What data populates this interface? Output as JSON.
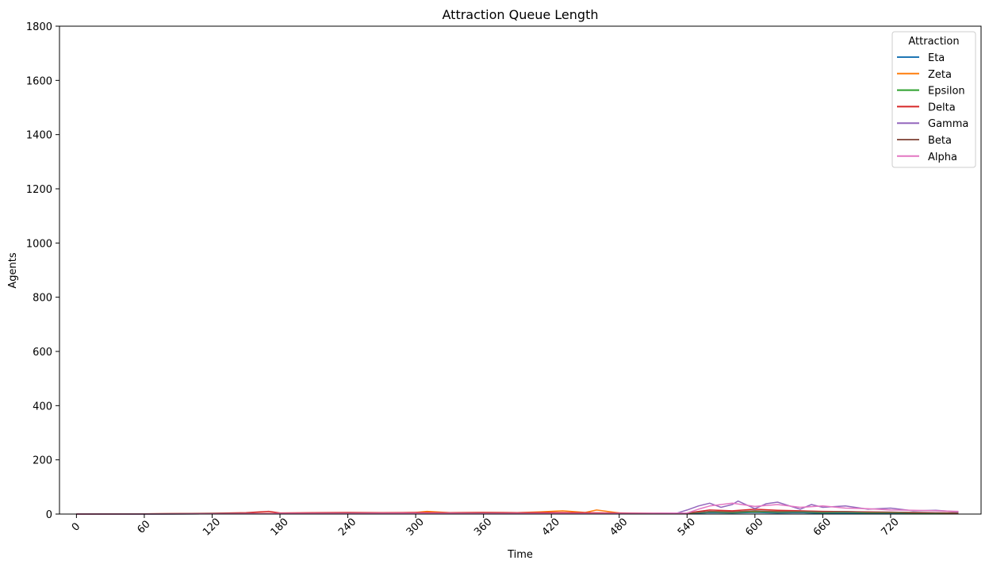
{
  "chart_data": {
    "type": "line",
    "title": "Attraction Queue Length",
    "xlabel": "Time",
    "ylabel": "Agents",
    "xlim": [
      -15,
      800
    ],
    "ylim": [
      0,
      1800
    ],
    "xticks": [
      0,
      60,
      120,
      180,
      240,
      300,
      360,
      420,
      480,
      540,
      600,
      660,
      720
    ],
    "yticks": [
      0,
      200,
      400,
      600,
      800,
      1000,
      1200,
      1400,
      1600,
      1800
    ],
    "x_tick_labels": [
      "0",
      "60",
      "120",
      "180",
      "240",
      "300",
      "360",
      "420",
      "480",
      "540",
      "600",
      "660",
      "720"
    ],
    "y_tick_labels": [
      "0",
      "200",
      "400",
      "600",
      "800",
      "1000",
      "1200",
      "1400",
      "1600",
      "1800"
    ],
    "grid": false,
    "legend": {
      "title": "Attraction",
      "placement": "top-right"
    },
    "series": [
      {
        "name": "Eta",
        "color": "#1f77b4",
        "x": [
          0,
          60,
          120,
          180,
          240,
          300,
          360,
          420,
          480,
          540,
          560,
          580,
          600,
          620,
          640,
          660,
          680,
          700,
          720,
          740,
          760,
          780
        ],
        "values": [
          0,
          0,
          1,
          1,
          1,
          1,
          1,
          1,
          1,
          2,
          5,
          4,
          6,
          4,
          5,
          3,
          4,
          3,
          3,
          2,
          2,
          2
        ]
      },
      {
        "name": "Zeta",
        "color": "#ff7f0e",
        "x": [
          0,
          60,
          120,
          150,
          180,
          210,
          240,
          270,
          300,
          310,
          330,
          360,
          390,
          410,
          430,
          450,
          460,
          480,
          510,
          540,
          570,
          600,
          630,
          660,
          690,
          720,
          750,
          780
        ],
        "values": [
          0,
          1,
          2,
          3,
          3,
          4,
          5,
          4,
          6,
          10,
          5,
          6,
          5,
          8,
          12,
          6,
          15,
          4,
          3,
          4,
          10,
          8,
          12,
          9,
          7,
          6,
          5,
          4
        ]
      },
      {
        "name": "Epsilon",
        "color": "#2ca02c",
        "x": [
          0,
          60,
          120,
          180,
          240,
          300,
          360,
          420,
          480,
          540,
          560,
          580,
          600,
          620,
          640,
          660,
          680,
          700,
          720,
          740,
          760,
          780
        ],
        "values": [
          0,
          0,
          1,
          1,
          1,
          2,
          1,
          2,
          1,
          3,
          8,
          6,
          9,
          7,
          8,
          6,
          7,
          5,
          5,
          4,
          4,
          3
        ]
      },
      {
        "name": "Delta",
        "color": "#d62728",
        "x": [
          0,
          60,
          120,
          150,
          170,
          180,
          210,
          240,
          270,
          300,
          330,
          360,
          390,
          420,
          450,
          480,
          510,
          540,
          560,
          580,
          600,
          620,
          640,
          660,
          680,
          700,
          720,
          740,
          760,
          780
        ],
        "values": [
          0,
          1,
          3,
          5,
          10,
          4,
          5,
          6,
          5,
          6,
          5,
          6,
          5,
          6,
          5,
          4,
          3,
          4,
          15,
          12,
          18,
          14,
          12,
          10,
          9,
          8,
          7,
          6,
          5,
          4
        ]
      },
      {
        "name": "Gamma",
        "color": "#9467bd",
        "x": [
          0,
          60,
          120,
          180,
          240,
          300,
          360,
          420,
          480,
          530,
          540,
          550,
          560,
          570,
          580,
          585,
          600,
          610,
          620,
          640,
          650,
          660,
          680,
          700,
          720,
          740,
          760,
          780
        ],
        "values": [
          0,
          0,
          1,
          1,
          1,
          1,
          1,
          1,
          1,
          2,
          15,
          30,
          40,
          25,
          35,
          48,
          20,
          38,
          44,
          18,
          35,
          25,
          30,
          18,
          22,
          12,
          14,
          8
        ]
      },
      {
        "name": "Beta",
        "color": "#8c564b",
        "x": [
          0,
          60,
          120,
          180,
          240,
          300,
          360,
          420,
          480,
          540,
          560,
          580,
          600,
          620,
          640,
          660,
          680,
          700,
          720,
          740,
          760,
          780
        ],
        "values": [
          0,
          1,
          2,
          2,
          3,
          2,
          3,
          2,
          2,
          3,
          10,
          8,
          12,
          9,
          10,
          8,
          9,
          7,
          7,
          6,
          5,
          4
        ]
      },
      {
        "name": "Alpha",
        "color": "#e377c2",
        "x": [
          0,
          60,
          120,
          180,
          240,
          300,
          360,
          420,
          480,
          540,
          550,
          560,
          580,
          600,
          620,
          640,
          660,
          680,
          700,
          720,
          740,
          760,
          780
        ],
        "values": [
          0,
          0,
          1,
          2,
          2,
          3,
          2,
          2,
          2,
          4,
          18,
          30,
          40,
          28,
          35,
          25,
          30,
          22,
          20,
          15,
          14,
          12,
          10
        ]
      }
    ]
  }
}
